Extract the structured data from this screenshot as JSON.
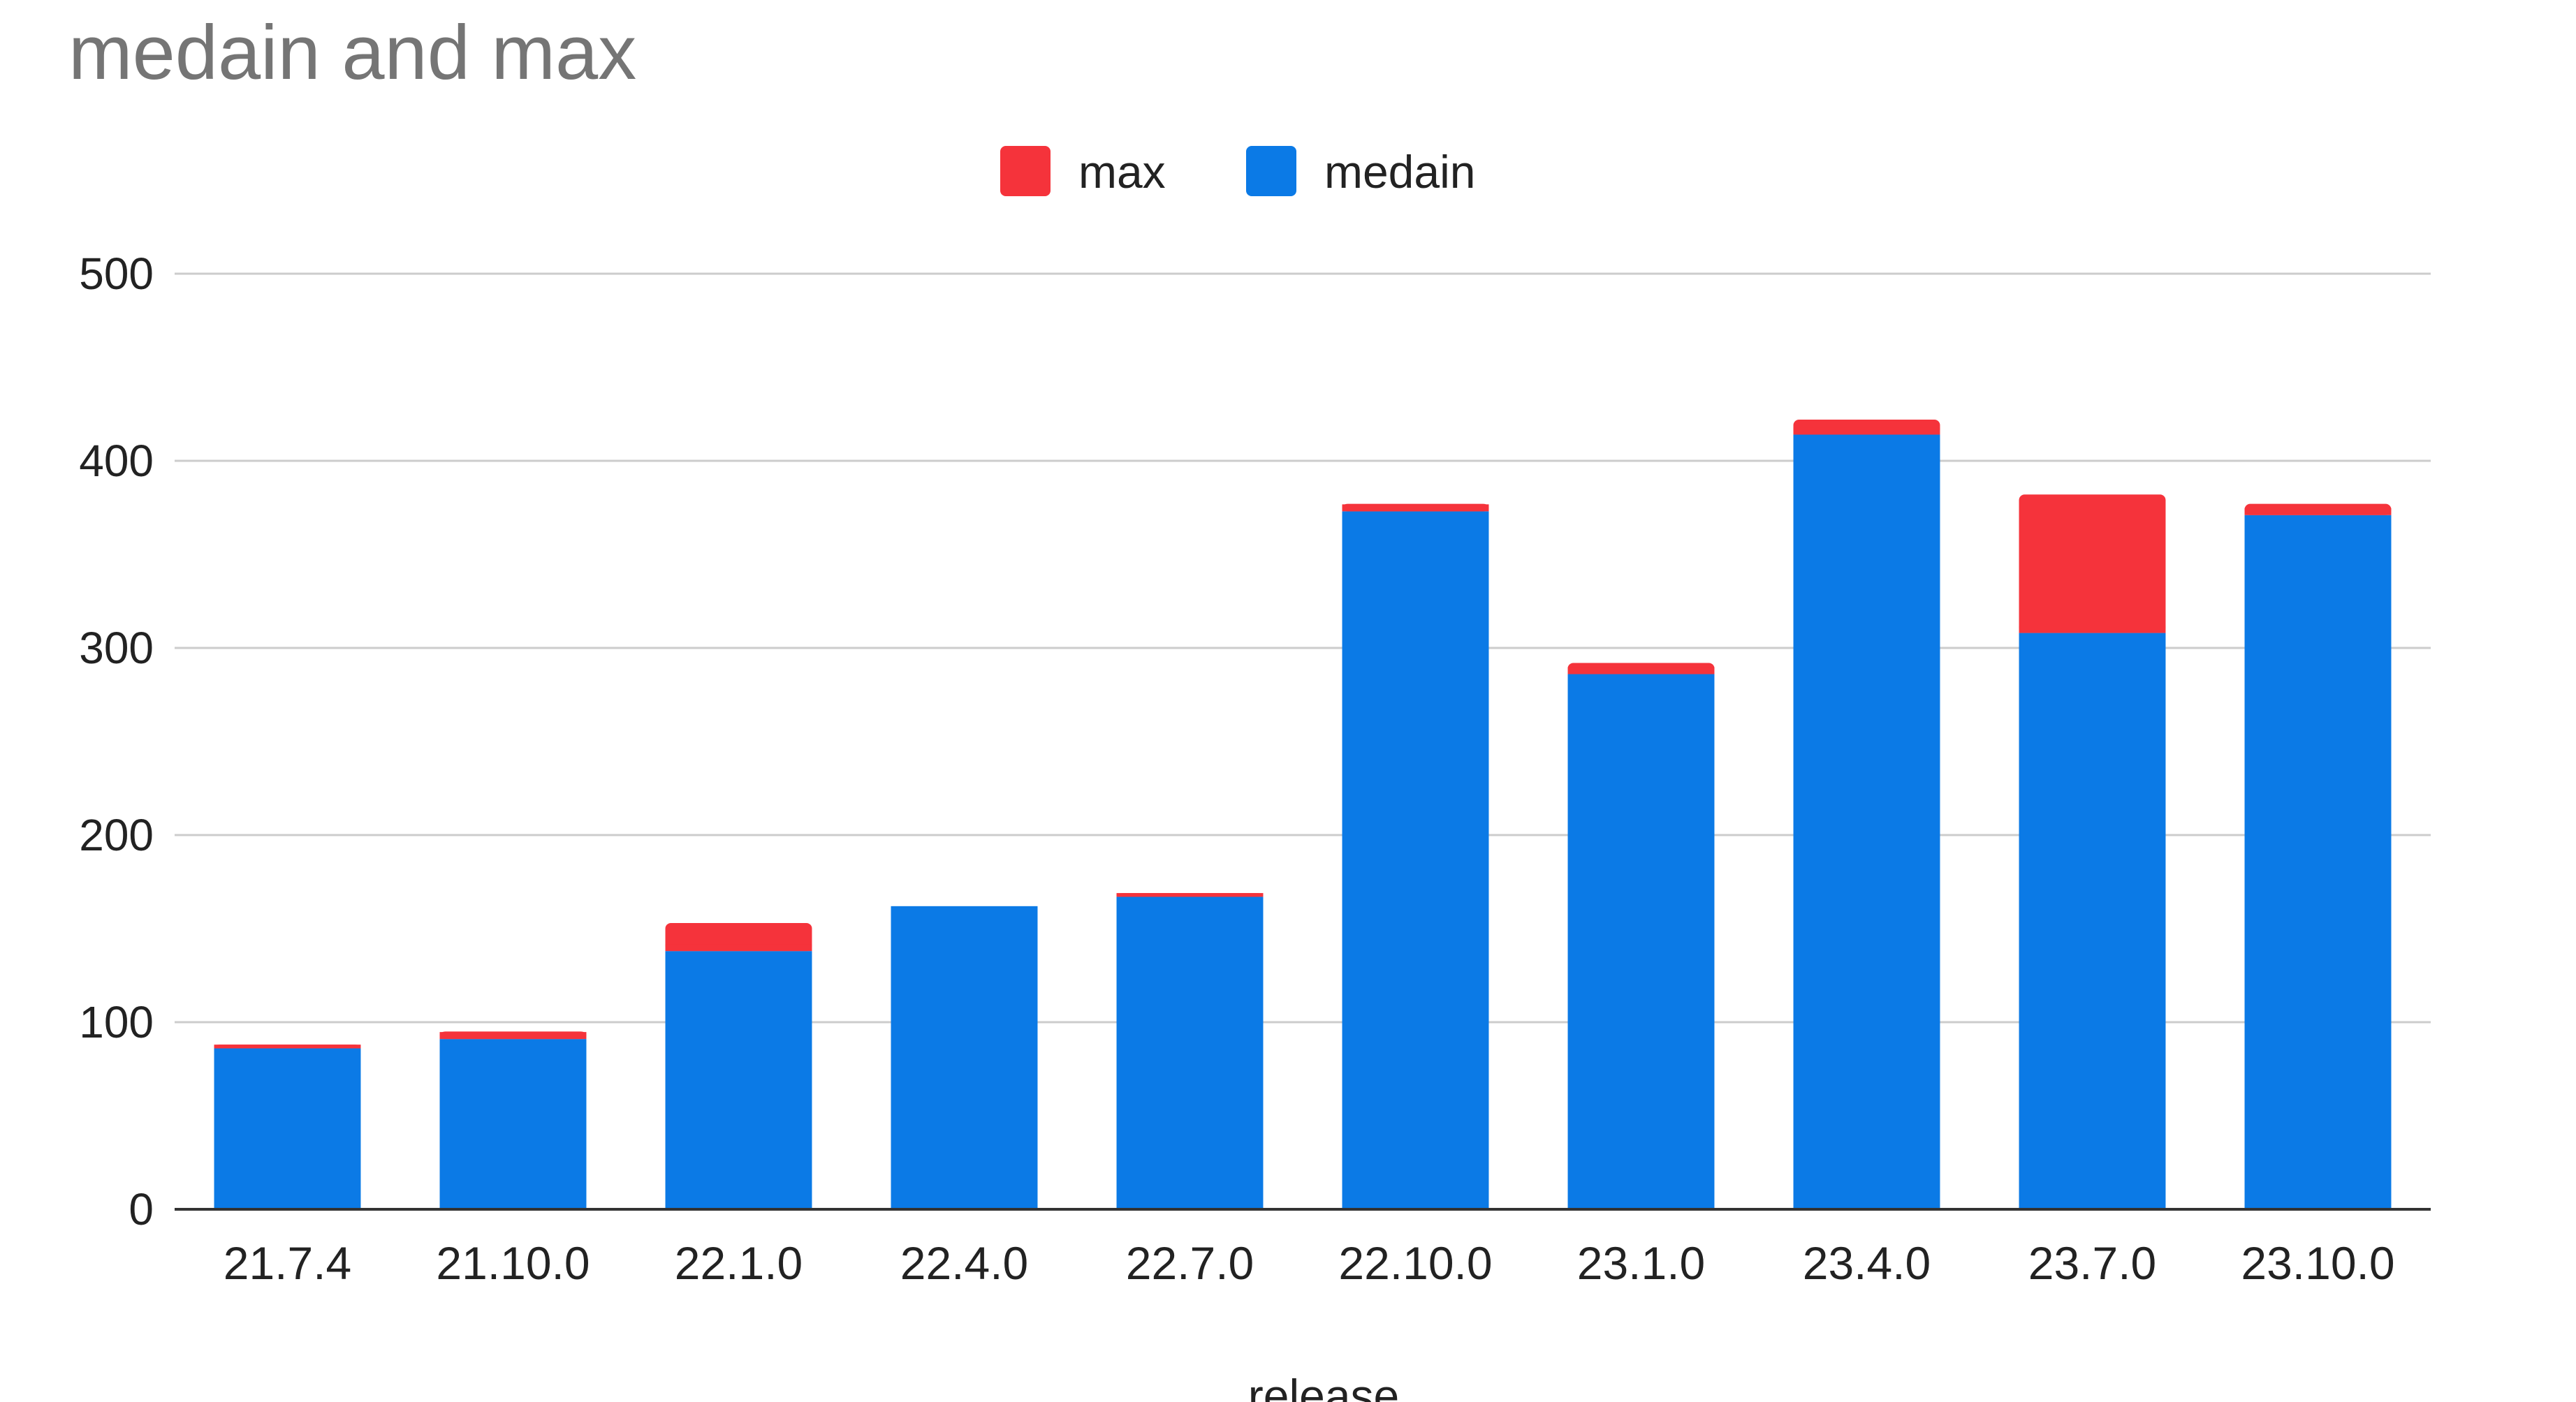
{
  "chart_data": {
    "type": "bar",
    "stacked": true,
    "title": "medain and max",
    "xlabel": "release",
    "ylabel": "",
    "categories": [
      "21.7.4",
      "21.10.0",
      "22.1.0",
      "22.4.0",
      "22.7.0",
      "22.10.0",
      "23.1.0",
      "23.4.0",
      "23.7.0",
      "23.10.0"
    ],
    "series": [
      {
        "name": "medain",
        "color": "#0b7ae6",
        "values": [
          86,
          91,
          138,
          162,
          167,
          373,
          286,
          414,
          308,
          371
        ]
      },
      {
        "name": "max",
        "color": "#f5333b",
        "values": [
          2,
          4,
          15,
          0,
          2,
          4,
          6,
          8,
          74,
          6
        ]
      }
    ],
    "legend": {
      "position": "top",
      "entries": [
        "max",
        "medain"
      ]
    },
    "yticks": [
      "0",
      "100",
      "200",
      "300",
      "400",
      "500"
    ],
    "ylim": [
      0,
      500
    ],
    "grid": true,
    "gridline_color": "#cccccc",
    "axis_color": "#333333"
  }
}
